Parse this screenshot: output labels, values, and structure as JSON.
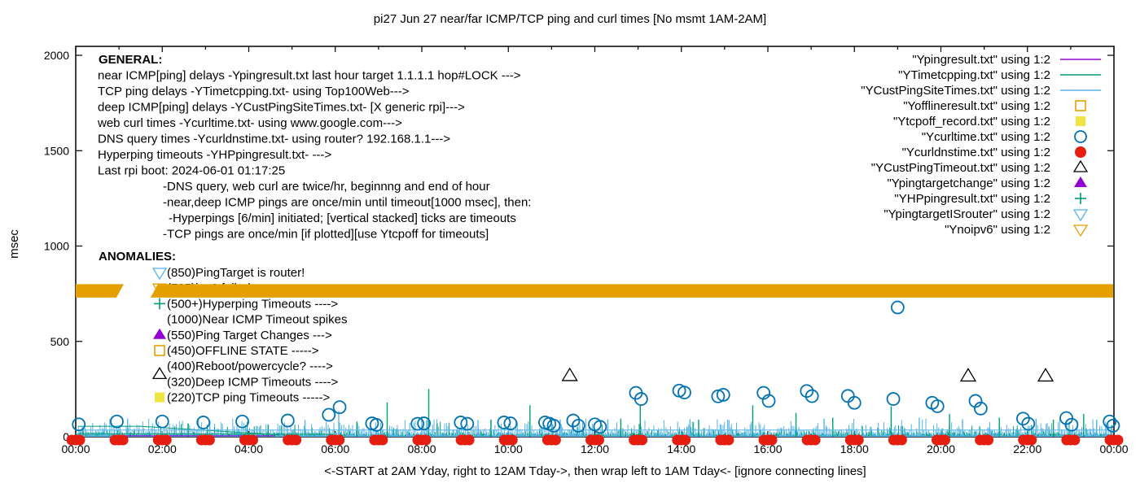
{
  "colors": {
    "purple": "#9400D3",
    "green": "#009E73",
    "skyblue": "#56B4E9",
    "orange": "#E69F00",
    "yellow": "#F0E442",
    "blue": "#0072B2",
    "red": "#E51E10",
    "black": "#000000"
  },
  "chart_data": {
    "type": "scatter",
    "title": "pi27 Jun 27  near/far ICMP/TCP ping and curl times [No msmt 1AM-2AM]",
    "xlabel": "<-START at 2AM Yday, right to 12AM Tday->, then wrap left to 1AM Tday<- [ignore connecting lines]",
    "ylabel": "msec",
    "x_ticks": [
      "00:00",
      "02:00",
      "04:00",
      "06:00",
      "08:00",
      "10:00",
      "12:00",
      "14:00",
      "16:00",
      "18:00",
      "20:00",
      "22:00",
      "00:00"
    ],
    "x_hours_span": 24,
    "y_ticks": [
      0,
      500,
      1000,
      1500,
      2000
    ],
    "y_range": [
      0,
      2045
    ],
    "grid": false,
    "legend_position": "top-right",
    "legend": [
      {
        "label": "\"Ypingresult.txt\" using 1:2",
        "marker": "line",
        "color": "purple"
      },
      {
        "label": "\"YTimetcpping.txt\" using 1:2",
        "marker": "line",
        "color": "green"
      },
      {
        "label": "\"YCustPingSiteTimes.txt\" using 1:2",
        "marker": "line",
        "color": "skyblue"
      },
      {
        "label": "\"Yofflineresult.txt\" using 1:2",
        "marker": "open-square",
        "color": "orange"
      },
      {
        "label": "\"Ytcpoff_record.txt\" using 1:2",
        "marker": "filled-square",
        "color": "yellow"
      },
      {
        "label": "\"Ycurltime.txt\" using 1:2",
        "marker": "open-circle",
        "color": "blue"
      },
      {
        "label": "\"Ycurldnstime.txt\" using 1:2",
        "marker": "filled-circle",
        "color": "red"
      },
      {
        "label": "\"YCustPingTimeout.txt\" using 1:2",
        "marker": "open-triangle",
        "color": "black"
      },
      {
        "label": "\"Ypingtargetchange\" using 1:2",
        "marker": "filled-triangle",
        "color": "purple"
      },
      {
        "label": "\"YHPpingresult.txt\" using 1:2",
        "marker": "plus",
        "color": "green"
      },
      {
        "label": "\"YpingtargetISrouter\" using 1:2",
        "marker": "open-down-triangle",
        "color": "skyblue"
      },
      {
        "label": "\"Ynoipv6\" using 1:2",
        "marker": "open-down-triangle",
        "color": "orange"
      }
    ],
    "series": {
      "curl_times": {
        "name": "Ycurltime.txt",
        "marker": "open-circle",
        "color": "blue",
        "points": [
          [
            0.07,
            65
          ],
          [
            0.95,
            80
          ],
          [
            2.0,
            80
          ],
          [
            2.95,
            75
          ],
          [
            3.85,
            80
          ],
          [
            4.9,
            85
          ],
          [
            5.85,
            115
          ],
          [
            6.1,
            155
          ],
          [
            6.85,
            70
          ],
          [
            6.95,
            62
          ],
          [
            7.9,
            68
          ],
          [
            8.05,
            70
          ],
          [
            8.9,
            75
          ],
          [
            9.05,
            68
          ],
          [
            9.9,
            75
          ],
          [
            10.05,
            70
          ],
          [
            10.85,
            75
          ],
          [
            10.95,
            68
          ],
          [
            11.05,
            58
          ],
          [
            11.5,
            85
          ],
          [
            11.62,
            58
          ],
          [
            12.0,
            65
          ],
          [
            12.12,
            52
          ],
          [
            12.95,
            230
          ],
          [
            13.07,
            198
          ],
          [
            13.95,
            242
          ],
          [
            14.07,
            232
          ],
          [
            14.85,
            212
          ],
          [
            14.97,
            220
          ],
          [
            15.9,
            230
          ],
          [
            16.02,
            188
          ],
          [
            16.9,
            240
          ],
          [
            17.02,
            213
          ],
          [
            17.85,
            214
          ],
          [
            18.0,
            178
          ],
          [
            18.9,
            198
          ],
          [
            19.0,
            678
          ],
          [
            19.8,
            178
          ],
          [
            19.92,
            160
          ],
          [
            20.8,
            188
          ],
          [
            20.92,
            148
          ],
          [
            21.9,
            95
          ],
          [
            22.02,
            68
          ],
          [
            22.9,
            98
          ],
          [
            23.02,
            63
          ],
          [
            23.9,
            80
          ],
          [
            23.98,
            58
          ]
        ]
      },
      "dns_times": {
        "name": "Ycurldnstime.txt",
        "marker": "filled-circle",
        "color": "red",
        "hourly_msec": 5,
        "hours": [
          0,
          1,
          2,
          3,
          4,
          5,
          6,
          7,
          8,
          9,
          10,
          11,
          12,
          13,
          14,
          15,
          16,
          17,
          18,
          19,
          20,
          21,
          22,
          23,
          24
        ]
      },
      "deep_icmp_timeouts": {
        "name": "YCustPingTimeout.txt",
        "marker": "open-triangle",
        "color": "black",
        "points": [
          [
            11.42,
            320
          ],
          [
            20.63,
            318
          ],
          [
            22.42,
            318
          ]
        ]
      },
      "noipv6_band": {
        "name": "Ynoipv6",
        "color": "orange",
        "msec_low": 730,
        "msec_high": 800,
        "segments": [
          [
            0.0,
            1.11
          ],
          [
            1.73,
            23.98
          ]
        ]
      },
      "tall_spikes_green": {
        "name": "YTimetcpping.txt",
        "color": "green",
        "points": [
          [
            2.6,
            70
          ],
          [
            4.45,
            62
          ],
          [
            6.5,
            80
          ],
          [
            7.2,
            180
          ],
          [
            8.16,
            250
          ],
          [
            9.6,
            90
          ],
          [
            10.5,
            165
          ],
          [
            12.6,
            95
          ],
          [
            13.05,
            165
          ],
          [
            14.4,
            90
          ],
          [
            15.65,
            165
          ],
          [
            16.65,
            125
          ],
          [
            17.5,
            100
          ],
          [
            18.85,
            160
          ],
          [
            20.2,
            120
          ],
          [
            21.35,
            100
          ],
          [
            22.6,
            90
          ],
          [
            23.3,
            120
          ]
        ]
      },
      "tall_spikes_blue": {
        "name": "YCustPingSiteTimes.txt",
        "color": "skyblue",
        "points": [
          [
            1.2,
            95
          ],
          [
            3.1,
            85
          ],
          [
            5.3,
            88
          ],
          [
            6.08,
            135
          ],
          [
            8.0,
            105
          ],
          [
            9.3,
            88
          ],
          [
            11.2,
            90
          ],
          [
            12.3,
            92
          ],
          [
            14.2,
            92
          ],
          [
            15.1,
            88
          ],
          [
            17.3,
            95
          ],
          [
            19.5,
            100
          ],
          [
            20.5,
            92
          ],
          [
            22.2,
            95
          ],
          [
            23.6,
            90
          ]
        ]
      },
      "connecting_lines": [
        {
          "color": "green",
          "pts": [
            [
              0.05,
              55
            ],
            [
              1.5,
              55
            ],
            [
              4.7,
              10
            ]
          ]
        },
        {
          "color": "green",
          "pts": [
            [
              0.05,
              16
            ],
            [
              5.95,
              13
            ]
          ]
        },
        {
          "color": "purple",
          "pts": [
            [
              0.95,
              5
            ],
            [
              4.6,
              5
            ]
          ]
        },
        {
          "color": "skyblue",
          "pts": [
            [
              0.02,
              35
            ],
            [
              23.98,
              35
            ]
          ]
        }
      ]
    },
    "noise": {
      "seed": 7,
      "blue": {
        "step_min": 0.02,
        "step_rand": 0.03,
        "msec_min": 22,
        "msec_rand": 85
      },
      "green": {
        "step_min": 0.05,
        "step_rand": 0.12,
        "msec_min": 12,
        "msec_rand": 75
      },
      "fuzz": {
        "step_min": 0.008,
        "step_rand": 0.012,
        "msec_min": 4,
        "msec_rand": 22
      }
    }
  },
  "general": {
    "heading": "GENERAL:",
    "lines": [
      {
        "indent": 0,
        "text": "near ICMP[ping] delays -Ypingresult.txt last hour target 1.1.1.1 hop#LOCK --->"
      },
      {
        "indent": 0,
        "text": "TCP ping delays -YTimetcpping.txt- using Top100Web--->"
      },
      {
        "indent": 0,
        "text": "deep ICMP[ping] delays -YCustPingSiteTimes.txt- [X generic rpi]--->"
      },
      {
        "indent": 0,
        "text": "web curl times -Ycurltime.txt- using www.google.com--->"
      },
      {
        "indent": 0,
        "text": "DNS query times -Ycurldnstime.txt- using router? 192.168.1.1--->"
      },
      {
        "indent": 0,
        "text": "Hyperping timeouts -YHPpingresult.txt- --->"
      },
      {
        "indent": 0,
        "text": "Last rpi boot: 2024-06-01 01:17:25"
      },
      {
        "indent": 1,
        "text": "-DNS query, web curl are twice/hr, beginnng and end of hour"
      },
      {
        "indent": 1,
        "text": "-near,deep ICMP pings are once/min until timeout[1000 msec], then:"
      },
      {
        "indent": 2,
        "text": "-Hyperpings [6/min] initiated; [vertical stacked] ticks are timeouts"
      },
      {
        "indent": 1,
        "text": "-TCP pings are once/min [if plotted][use Ytcpoff for timeouts]"
      }
    ]
  },
  "anomalies": {
    "heading": "ANOMALIES:",
    "items": [
      {
        "marker": "open-down-triangle",
        "color": "skyblue",
        "text": "(850)PingTarget is router!"
      },
      {
        "marker": "open-down-triangle",
        "color": "orange",
        "text": "(735)ipv6 failed"
      },
      {
        "marker": "plus",
        "color": "green",
        "text": "(500+)Hyperping Timeouts ---->"
      },
      {
        "marker": "none",
        "color": "black",
        "text": "(1000)Near ICMP Timeout spikes"
      },
      {
        "marker": "filled-triangle",
        "color": "purple",
        "text": "(550)Ping Target Changes --->"
      },
      {
        "marker": "open-square",
        "color": "orange",
        "text": "(450)OFFLINE STATE ----->"
      },
      {
        "marker": "none",
        "color": "black",
        "text": "(400)Reboot/powercycle? ---->"
      },
      {
        "marker": "open-triangle",
        "color": "black",
        "text": "(320)Deep ICMP Timeouts ---->"
      },
      {
        "marker": "filled-square",
        "color": "yellow",
        "text": "(220)TCP ping Timeouts ----->"
      }
    ]
  }
}
